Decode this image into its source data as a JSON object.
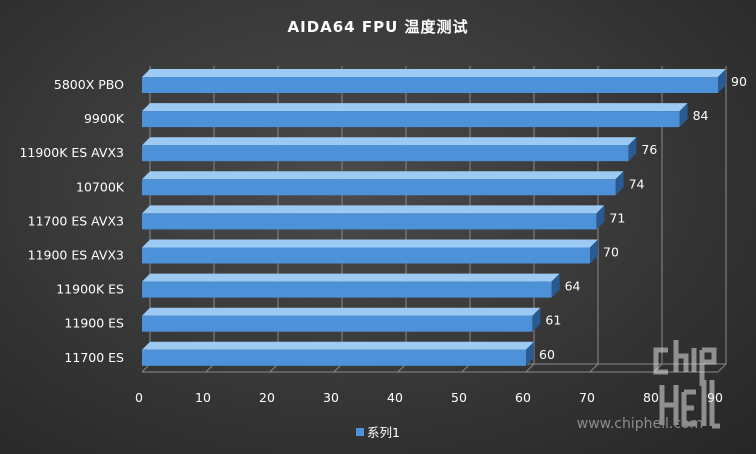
{
  "chart_data": {
    "type": "bar",
    "orientation": "horizontal",
    "title": "AIDA64 FPU 温度测试",
    "categories": [
      "5800X PBO",
      "9900K",
      "11900K ES AVX3",
      "10700K",
      "11700 ES AVX3",
      "11900 ES AVX3",
      "11900K ES",
      "11900 ES",
      "11700 ES"
    ],
    "series": [
      {
        "name": "系列1",
        "values": [
          90,
          84,
          76,
          74,
          71,
          70,
          64,
          61,
          60
        ]
      }
    ],
    "xlim": [
      0,
      90
    ],
    "x_ticks": [
      "0",
      "10",
      "20",
      "30",
      "40",
      "50",
      "60",
      "70",
      "80",
      "90"
    ],
    "grid": true,
    "legend_position": "bottom",
    "colors": {
      "bar_front": "#4d92d8",
      "bar_top": "#9ccaf3",
      "bar_side": "#2a5a92",
      "grid": "#8a8a8a",
      "text": "#ffffff"
    }
  },
  "watermark": {
    "url": "www.chiphell.com"
  }
}
